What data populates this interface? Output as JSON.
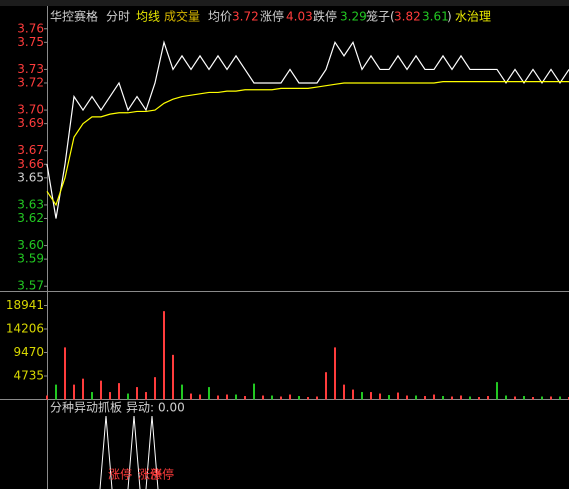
{
  "header": {
    "stock": "华控赛格",
    "avg_label": "均价",
    "avg": 3.72,
    "limit_up_label": "涨停",
    "limit_up": 4.03,
    "limit_down_label": "跌停",
    "limit_down": 3.29,
    "cage_label": "笼子(",
    "cage_high": 3.82,
    "cage_low": 3.61,
    "cage_close": ")",
    "concept": "水治理"
  },
  "chart_data": [
    {
      "type": "line",
      "series": [
        {
          "name": "分时",
          "color": "#ffffff",
          "values": [
            3.66,
            3.62,
            3.66,
            3.71,
            3.7,
            3.71,
            3.7,
            3.71,
            3.72,
            3.7,
            3.71,
            3.7,
            3.72,
            3.75,
            3.73,
            3.74,
            3.73,
            3.74,
            3.73,
            3.74,
            3.73,
            3.74,
            3.73,
            3.72,
            3.72,
            3.72,
            3.72,
            3.73,
            3.72,
            3.72,
            3.72,
            3.73,
            3.75,
            3.74,
            3.75,
            3.73,
            3.74,
            3.73,
            3.73,
            3.74,
            3.73,
            3.74,
            3.73,
            3.73,
            3.74,
            3.73,
            3.74,
            3.73,
            3.73,
            3.73,
            3.73,
            3.72,
            3.73,
            3.72,
            3.73,
            3.72,
            3.73,
            3.72,
            3.73
          ]
        },
        {
          "name": "均线",
          "color": "#ffff00",
          "values": [
            3.64,
            3.63,
            3.65,
            3.68,
            3.69,
            3.695,
            3.695,
            3.697,
            3.698,
            3.698,
            3.699,
            3.699,
            3.7,
            3.705,
            3.708,
            3.71,
            3.711,
            3.712,
            3.713,
            3.713,
            3.714,
            3.714,
            3.715,
            3.715,
            3.715,
            3.715,
            3.716,
            3.716,
            3.716,
            3.716,
            3.717,
            3.718,
            3.719,
            3.72,
            3.72,
            3.72,
            3.72,
            3.72,
            3.72,
            3.72,
            3.72,
            3.72,
            3.72,
            3.72,
            3.721,
            3.721,
            3.721,
            3.721,
            3.721,
            3.721,
            3.721,
            3.721,
            3.721,
            3.721,
            3.721,
            3.721,
            3.721,
            3.721,
            3.721
          ]
        }
      ],
      "ylim": [
        3.565,
        3.765
      ],
      "yticks": [
        3.76,
        3.75,
        3.73,
        3.72,
        {
          "value": 3.7,
          "label": "3.70"
        },
        3.69,
        3.67,
        3.66,
        3.65,
        3.63,
        3.62,
        {
          "value": 3.6,
          "label": "3.60"
        },
        3.59,
        3.57
      ],
      "ytick_colors": [
        "#ff3c3c",
        "#ff3c3c",
        "#ff3c3c",
        "#ff3c3c",
        "#ff3c3c",
        "#ff3c3c",
        "#ff3c3c",
        "#ff3c3c",
        "#d0d0d0",
        "#22c822",
        "#22c822",
        "#22c822",
        "#22c822",
        "#22c822"
      ],
      "grid": false
    },
    {
      "type": "bar",
      "title": "成交量",
      "series": [
        {
          "color": "#ff3c3c",
          "values": [
            800,
            null,
            10500,
            3000,
            4200,
            null,
            3800,
            1500,
            3300,
            null,
            2500,
            1500,
            4500,
            17800,
            9000,
            null,
            1200,
            1000,
            null,
            800,
            1000,
            null,
            700,
            null,
            800,
            null,
            600,
            1000,
            null,
            500,
            600,
            5500,
            10500,
            3000,
            2000,
            null,
            1500,
            1200,
            null,
            1400,
            800,
            null,
            700,
            1000,
            null,
            600,
            800,
            null,
            500,
            700,
            null,
            null,
            600,
            null,
            500,
            null,
            600,
            null,
            500
          ]
        },
        {
          "color": "#22c822",
          "values": [
            null,
            3000,
            null,
            null,
            null,
            1500,
            null,
            null,
            null,
            1200,
            null,
            null,
            null,
            null,
            null,
            3000,
            null,
            null,
            2500,
            null,
            null,
            1000,
            null,
            3200,
            null,
            800,
            null,
            null,
            700,
            null,
            null,
            null,
            null,
            null,
            null,
            1500,
            null,
            null,
            900,
            null,
            null,
            800,
            null,
            null,
            700,
            null,
            null,
            600,
            null,
            null,
            3500,
            800,
            null,
            700,
            null,
            600,
            null,
            600,
            null
          ]
        }
      ],
      "ylim": [
        0,
        22270
      ],
      "yticks": [
        4735,
        9470,
        14206,
        18941
      ],
      "ytick_color": "#d8d800"
    }
  ],
  "signal_panel": {
    "title": "分种异动抓板",
    "label": "异动:",
    "value": "0.00",
    "signals": [
      "涨停",
      "涨停",
      "涨停"
    ]
  }
}
